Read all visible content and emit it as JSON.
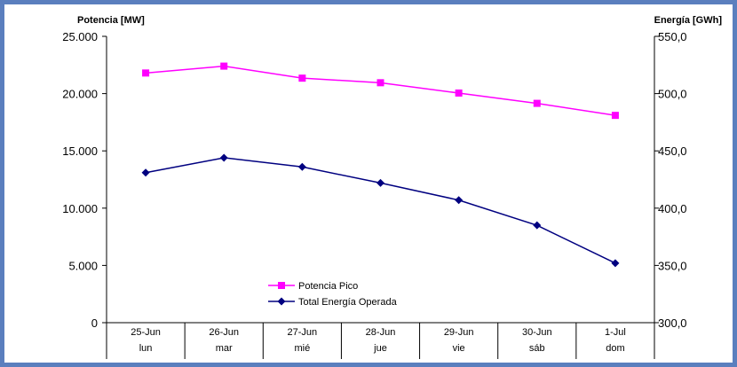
{
  "chart_data": {
    "type": "line",
    "dual_axis": true,
    "categories": [
      "25-Jun",
      "26-Jun",
      "27-Jun",
      "28-Jun",
      "29-Jun",
      "30-Jun",
      "1-Jul"
    ],
    "subcategories": [
      "lun",
      "mar",
      "mié",
      "jue",
      "vie",
      "sáb",
      "dom"
    ],
    "left_axis": {
      "label": "Potencia [MW]",
      "ylim": [
        0,
        25000
      ],
      "ticks": [
        "0",
        "5.000",
        "10.000",
        "15.000",
        "20.000",
        "25.000"
      ]
    },
    "right_axis": {
      "label": "Energía [GWh]",
      "ylim": [
        300,
        550
      ],
      "ticks": [
        "300,0",
        "350,0",
        "400,0",
        "450,0",
        "500,0",
        "550,0"
      ]
    },
    "series": [
      {
        "name": "Potencia Pico",
        "axis": "left",
        "color": "#ff00ff",
        "marker": "square",
        "values": [
          21800,
          22400,
          21350,
          20950,
          20050,
          19150,
          18100
        ]
      },
      {
        "name": "Total Energía Operada",
        "axis": "right",
        "color": "#000080",
        "marker": "diamond",
        "values": [
          431,
          444,
          436,
          422,
          407,
          385,
          352
        ]
      }
    ],
    "grid": false,
    "legend_position": "bottom-center-inside"
  }
}
